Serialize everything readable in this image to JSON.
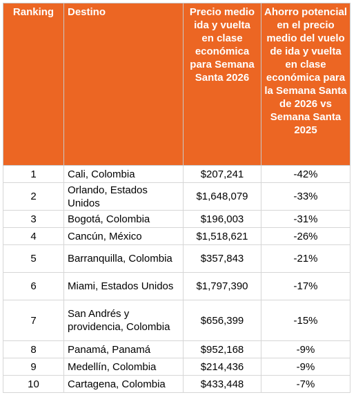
{
  "headers": {
    "ranking": "Ranking",
    "destination": "Destino",
    "price": "Precio medio ida y vuelta en clase económica para Semana Santa 2026",
    "savings": "Ahorro potencial en el precio medio del vuelo de ida y vuelta en clase económica para la Semana Santa de 2026 vs Semana Santa 2025"
  },
  "rows": [
    {
      "rank": "1",
      "destination": "Cali, Colombia",
      "price": "$207,241",
      "savings": "-42%"
    },
    {
      "rank": "2",
      "destination": "Orlando, Estados Unidos",
      "price": "$1,648,079",
      "savings": "-33%"
    },
    {
      "rank": "3",
      "destination": "Bogotá, Colombia",
      "price": "$196,003",
      "savings": "-31%"
    },
    {
      "rank": "4",
      "destination": "Cancún, México",
      "price": "$1,518,621",
      "savings": "-26%"
    },
    {
      "rank": "5",
      "destination": "Barranquilla, Colombia",
      "price": "$357,843",
      "savings": "-21%"
    },
    {
      "rank": "6",
      "destination": "Miami, Estados Unidos",
      "price": "$1,797,390",
      "savings": "-17%"
    },
    {
      "rank": "7",
      "destination": "San Andrés y providencia, Colombia",
      "price": "$656,399",
      "savings": "-15%"
    },
    {
      "rank": "8",
      "destination": "Panamá, Panamá",
      "price": "$952,168",
      "savings": "-9%"
    },
    {
      "rank": "9",
      "destination": "Medellín, Colombia",
      "price": "$214,436",
      "savings": "-9%"
    },
    {
      "rank": "10",
      "destination": "Cartagena, Colombia",
      "price": "$433,448",
      "savings": "-7%"
    }
  ],
  "colors": {
    "header_bg": "#ec6623",
    "header_text": "#ffffff",
    "grid": "#d6d6d6"
  }
}
